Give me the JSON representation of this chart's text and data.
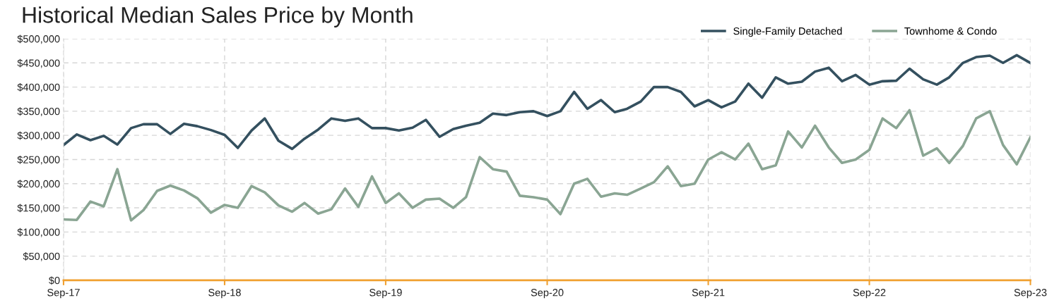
{
  "chart_data": {
    "type": "line",
    "title": "Historical Median Sales Price by Month",
    "x": [
      "2017-09",
      "2017-10",
      "2017-11",
      "2017-12",
      "2018-01",
      "2018-02",
      "2018-03",
      "2018-04",
      "2018-05",
      "2018-06",
      "2018-07",
      "2018-08",
      "2018-09",
      "2018-10",
      "2018-11",
      "2018-12",
      "2019-01",
      "2019-02",
      "2019-03",
      "2019-04",
      "2019-05",
      "2019-06",
      "2019-07",
      "2019-08",
      "2019-09",
      "2019-10",
      "2019-11",
      "2019-12",
      "2020-01",
      "2020-02",
      "2020-03",
      "2020-04",
      "2020-05",
      "2020-06",
      "2020-07",
      "2020-08",
      "2020-09",
      "2020-10",
      "2020-11",
      "2020-12",
      "2021-01",
      "2021-02",
      "2021-03",
      "2021-04",
      "2021-05",
      "2021-06",
      "2021-07",
      "2021-08",
      "2021-09",
      "2021-10",
      "2021-11",
      "2021-12",
      "2022-01",
      "2022-02",
      "2022-03",
      "2022-04",
      "2022-05",
      "2022-06",
      "2022-07",
      "2022-08",
      "2022-09",
      "2022-10",
      "2022-11",
      "2022-12",
      "2023-01",
      "2023-02",
      "2023-03",
      "2023-04",
      "2023-05",
      "2023-06",
      "2023-07",
      "2023-08",
      "2023-09"
    ],
    "xlim": [
      "2017-09",
      "2023-09"
    ],
    "xticks": [
      {
        "value": "2017-09",
        "label": "Sep-17"
      },
      {
        "value": "2018-09",
        "label": "Sep-18"
      },
      {
        "value": "2019-09",
        "label": "Sep-19"
      },
      {
        "value": "2020-09",
        "label": "Sep-20"
      },
      {
        "value": "2021-09",
        "label": "Sep-21"
      },
      {
        "value": "2022-09",
        "label": "Sep-22"
      },
      {
        "value": "2023-09",
        "label": "Sep-23"
      }
    ],
    "ylim": [
      0,
      500000
    ],
    "yticks": [
      {
        "value": 0,
        "label": "$0"
      },
      {
        "value": 50000,
        "label": "$50,000"
      },
      {
        "value": 100000,
        "label": "$100,000"
      },
      {
        "value": 150000,
        "label": "$150,000"
      },
      {
        "value": 200000,
        "label": "$200,000"
      },
      {
        "value": 250000,
        "label": "$250,000"
      },
      {
        "value": 300000,
        "label": "$300,000"
      },
      {
        "value": 350000,
        "label": "$350,000"
      },
      {
        "value": 400000,
        "label": "$400,000"
      },
      {
        "value": 450000,
        "label": "$450,000"
      },
      {
        "value": 500000,
        "label": "$500,000"
      }
    ],
    "grid": true,
    "legend": "top right",
    "marker": "none",
    "line_style": "solid",
    "series": [
      {
        "name": "Single-Family Detached",
        "color": "#34505f",
        "values": [
          280000,
          302000,
          290000,
          299000,
          281000,
          315000,
          323000,
          323000,
          303000,
          324000,
          319000,
          311000,
          301000,
          274000,
          310000,
          335000,
          289000,
          272000,
          293000,
          312000,
          335000,
          330000,
          335000,
          315000,
          315000,
          310000,
          316000,
          332000,
          297000,
          313000,
          320000,
          326000,
          345000,
          342000,
          348000,
          350000,
          340000,
          350000,
          390000,
          355000,
          373000,
          348000,
          355000,
          370000,
          400000,
          400000,
          390000,
          360000,
          373000,
          358000,
          370000,
          407000,
          378000,
          420000,
          407000,
          411000,
          432000,
          440000,
          412000,
          425000,
          405000,
          412000,
          413000,
          438000,
          416000,
          405000,
          420000,
          450000,
          462000,
          465000,
          450000,
          466000,
          450000
        ]
      },
      {
        "name": "Townhome & Condo",
        "color": "#8aa593",
        "values": [
          126000,
          125000,
          163000,
          153000,
          230000,
          124000,
          145000,
          185000,
          196000,
          186000,
          170000,
          140000,
          156000,
          150000,
          195000,
          182000,
          155000,
          142000,
          160000,
          138000,
          147000,
          190000,
          152000,
          215000,
          160000,
          180000,
          150000,
          167000,
          169000,
          150000,
          172000,
          255000,
          230000,
          225000,
          175000,
          172000,
          167000,
          137000,
          200000,
          210000,
          173000,
          180000,
          177000,
          190000,
          203000,
          236000,
          195000,
          200000,
          250000,
          265000,
          250000,
          283000,
          230000,
          238000,
          308000,
          275000,
          320000,
          275000,
          243000,
          250000,
          270000,
          335000,
          315000,
          352000,
          258000,
          273000,
          243000,
          278000,
          335000,
          350000,
          280000,
          240000,
          296000
        ]
      }
    ]
  }
}
